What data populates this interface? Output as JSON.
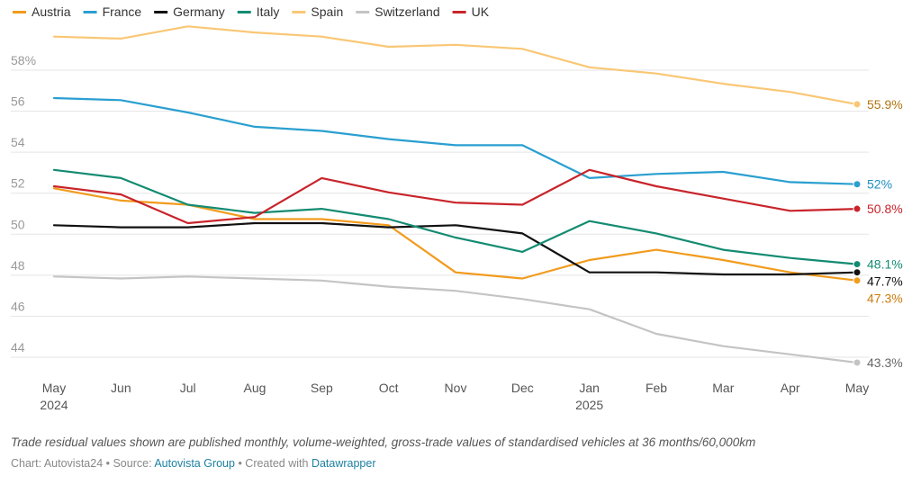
{
  "chart_data": {
    "type": "line",
    "categories": [
      "May 2024",
      "Jun",
      "Jul",
      "Aug",
      "Sep",
      "Oct",
      "Nov",
      "Dec",
      "Jan 2025",
      "Feb",
      "Mar",
      "Apr",
      "May"
    ],
    "x_tick_labels": [
      [
        "May",
        "2024"
      ],
      [
        "Jun"
      ],
      [
        "Jul"
      ],
      [
        "Aug"
      ],
      [
        "Sep"
      ],
      [
        "Oct"
      ],
      [
        "Nov"
      ],
      [
        "Dec"
      ],
      [
        "Jan",
        "2025"
      ],
      [
        "Feb"
      ],
      [
        "Mar"
      ],
      [
        "Apr"
      ],
      [
        "May"
      ]
    ],
    "y_ticks": [
      44,
      46,
      48,
      50,
      52,
      54,
      56,
      58
    ],
    "y_tick_labels": [
      "44",
      "46",
      "48",
      "50",
      "52",
      "54",
      "56",
      "58%"
    ],
    "ylim": [
      43,
      60
    ],
    "grid": true,
    "legend_position": "top-left",
    "series": [
      {
        "name": "Austria",
        "color": "#f29b1d",
        "values": [
          51.8,
          51.2,
          51.0,
          50.3,
          50.3,
          50.0,
          47.7,
          47.4,
          48.3,
          48.8,
          48.3,
          47.7,
          47.3
        ],
        "end_label": "47.3%",
        "end_label_color": "#c97a0c"
      },
      {
        "name": "France",
        "color": "#2a9fd0",
        "values": [
          56.2,
          56.1,
          55.5,
          54.8,
          54.6,
          54.2,
          53.9,
          53.9,
          52.3,
          52.5,
          52.6,
          52.1,
          52.0
        ],
        "end_label": "52%",
        "end_label_color": "#1c8ec0"
      },
      {
        "name": "Germany",
        "color": "#111111",
        "values": [
          50.0,
          49.9,
          49.9,
          50.1,
          50.1,
          49.9,
          50.0,
          49.6,
          47.7,
          47.7,
          47.6,
          47.6,
          47.7
        ],
        "end_label": "47.7%",
        "end_label_color": "#111111"
      },
      {
        "name": "Italy",
        "color": "#138b72",
        "values": [
          52.7,
          52.3,
          51.0,
          50.6,
          50.8,
          50.3,
          49.4,
          48.7,
          50.2,
          49.6,
          48.8,
          48.4,
          48.1
        ],
        "end_label": "48.1%",
        "end_label_color": "#138b72"
      },
      {
        "name": "Spain",
        "color": "#f9c775",
        "values": [
          59.2,
          59.1,
          59.7,
          59.4,
          59.2,
          58.7,
          58.8,
          58.6,
          57.7,
          57.4,
          56.9,
          56.5,
          55.9
        ],
        "end_label": "55.9%",
        "end_label_color": "#b07510"
      },
      {
        "name": "Switzerland",
        "color": "#c4c4c4",
        "values": [
          47.5,
          47.4,
          47.5,
          47.4,
          47.3,
          47.0,
          46.8,
          46.4,
          45.9,
          44.7,
          44.1,
          43.7,
          43.3
        ],
        "end_label": "43.3%",
        "end_label_color": "#666666"
      },
      {
        "name": "UK",
        "color": "#c8242b",
        "values": [
          51.9,
          51.5,
          50.1,
          50.4,
          52.3,
          51.6,
          51.1,
          51.0,
          52.7,
          51.9,
          51.3,
          50.7,
          50.8
        ],
        "end_label": "50.8%",
        "end_label_color": "#c8242b"
      }
    ]
  },
  "footer": {
    "note": "Trade residual values shown are published monthly, volume-weighted, gross-trade values of standardised vehicles at 36 months/60,000km",
    "credit_prefix": "Chart: Autovista24 • Source: ",
    "source_link": "Autovista Group",
    "credit_mid": " • Created with ",
    "tool_link": "Datawrapper"
  }
}
